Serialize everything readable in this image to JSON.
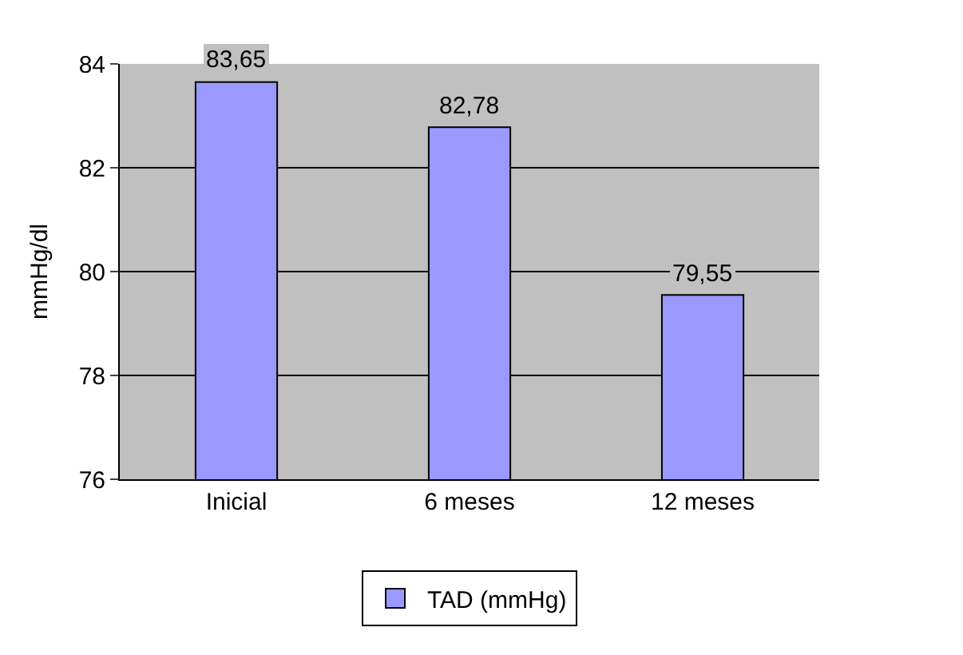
{
  "chart_data": {
    "type": "bar",
    "ylabel": "mmHg/dl",
    "categories": [
      "Inicial",
      "6 meses",
      "12 meses"
    ],
    "series": [
      {
        "name": "TAD (mmHg)",
        "color": "#9999ff",
        "values": [
          83.65,
          82.78,
          79.55
        ],
        "value_labels": [
          "83,65",
          "82,78",
          "79,55"
        ]
      }
    ],
    "ylim": [
      76,
      84
    ],
    "yticks": [
      76,
      78,
      80,
      82,
      84
    ],
    "grid": "y",
    "legend": "bottom"
  }
}
